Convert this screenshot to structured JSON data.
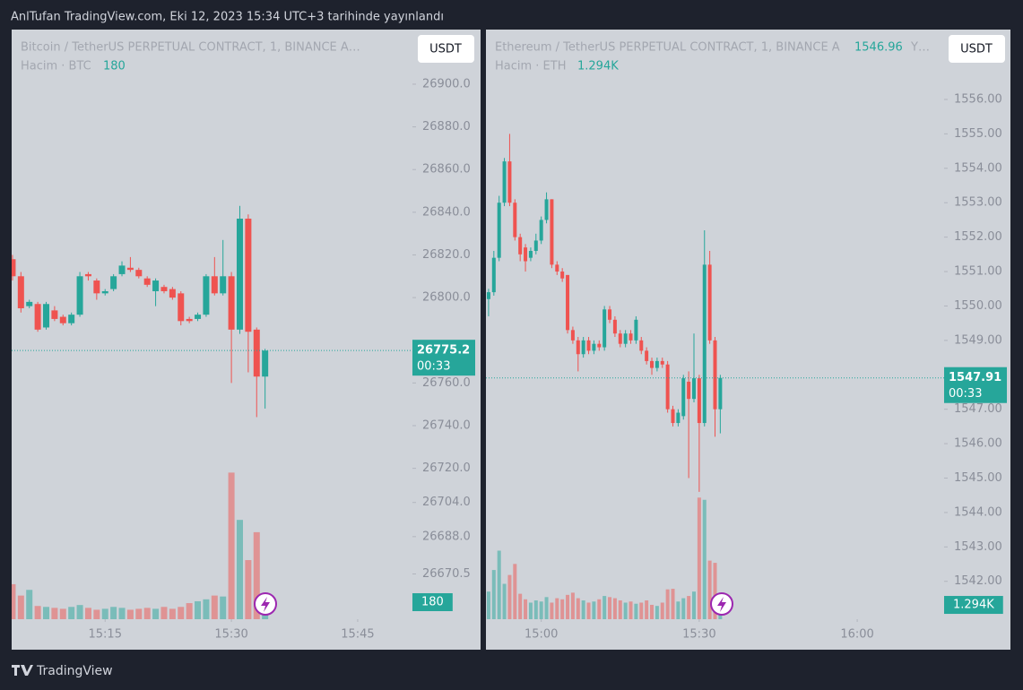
{
  "header": {
    "title": "AnlTufan TradingView.com, Eki 12, 2023 15:34 UTC+3 tarihinde yayınlandı"
  },
  "footer": {
    "brand": "TradingView"
  },
  "chart_data": [
    {
      "type": "candlestick",
      "symbol": "Bitcoin / TetherUS PERPETUAL CONTRACT, 1, BINANCE  A…",
      "volume_title": "Hacim · BTC",
      "currency": "USDT",
      "countdown": "00:33",
      "up_color": "#26a69a",
      "down_color": "#ef5350",
      "open": [
        26818,
        26810,
        26796,
        26797,
        26786,
        26794,
        26791,
        26788,
        26792,
        26811,
        26808,
        26802,
        26804,
        26811,
        26814,
        26813,
        26809,
        26803,
        26805,
        26804,
        26802,
        26790,
        26790,
        26792,
        26810,
        26802,
        26810,
        26785,
        26837,
        26785,
        26763
      ],
      "high": [
        26820,
        26812,
        26799,
        26798,
        26798,
        26796,
        26792,
        26793,
        26812,
        26812,
        26809,
        26804,
        26811,
        26817,
        26819,
        26814,
        26810,
        26809,
        26806,
        26805,
        26803,
        26791,
        26793,
        26811,
        26819,
        26827,
        26812,
        26843,
        26839,
        26786,
        26776
      ],
      "low": [
        26808,
        26793,
        26795,
        26784,
        26785,
        26789,
        26787,
        26787,
        26791,
        26808,
        26799,
        26801,
        26803,
        26810,
        26812,
        26809,
        26805,
        26796,
        26802,
        26799,
        26787,
        26788,
        26789,
        26791,
        26801,
        26801,
        26760,
        26783,
        26765,
        26744,
        26748
      ],
      "close": [
        26810,
        26795,
        26798,
        26785,
        26797,
        26790,
        26788,
        26792,
        26810,
        26810,
        26802,
        26803,
        26810,
        26815,
        26813,
        26810,
        26806,
        26808,
        26803,
        26800,
        26789,
        26789,
        26792,
        26810,
        26802,
        26810,
        26785,
        26837,
        26784,
        26763,
        26775.2
      ],
      "volumes": [
        370,
        250,
        310,
        140,
        130,
        120,
        110,
        130,
        150,
        120,
        100,
        110,
        130,
        120,
        100,
        110,
        120,
        110,
        130,
        110,
        130,
        170,
        190,
        210,
        250,
        240,
        1550,
        1050,
        625,
        920,
        180
      ],
      "vlim": [
        0,
        1800
      ],
      "ylim": [
        26649.3,
        26925.6
      ],
      "yticks": [
        {
          "value": 26900,
          "label": "26900.0"
        },
        {
          "value": 26880,
          "label": "26880.0"
        },
        {
          "value": 26860,
          "label": "26860.0"
        },
        {
          "value": 26840,
          "label": "26840.0"
        },
        {
          "value": 26820,
          "label": "26820.0"
        },
        {
          "value": 26800,
          "label": "26800.0"
        },
        {
          "value": 26760,
          "label": "26760.0"
        },
        {
          "value": 26740,
          "label": "26740.0"
        },
        {
          "value": 26720,
          "label": "26720.0"
        },
        {
          "value": 26704,
          "label": "26704.0"
        },
        {
          "value": 26688,
          "label": "26688.0"
        },
        26670.5
      ],
      "xlim": [
        -0.1,
        47.5
      ],
      "xticks": [
        {
          "value": 11,
          "label": "15:15"
        },
        {
          "value": 26,
          "label": "15:30"
        },
        {
          "value": 41,
          "label": "15:45"
        }
      ]
    },
    {
      "type": "candlestick",
      "symbol": "Ethereum / TetherUS PERPETUAL CONTRACT, 1, BINANCE  A",
      "legend_value": 1546.96,
      "legend_suffix": "Y…",
      "volume_title": "Hacim · ETH",
      "volume_label": "1.294K",
      "currency": "USDT",
      "countdown": "00:33",
      "up_color": "#26a69a",
      "down_color": "#ef5350",
      "open": [
        1550.2,
        1550.4,
        1551.4,
        1553.0,
        1554.2,
        1553.0,
        1552.0,
        1551.7,
        1551.4,
        1551.6,
        1551.9,
        1552.5,
        1553.1,
        1551.2,
        1551.0,
        1550.9,
        1549.3,
        1549.0,
        1548.6,
        1549.0,
        1548.7,
        1548.9,
        1548.8,
        1549.9,
        1549.6,
        1549.2,
        1548.9,
        1549.2,
        1549.0,
        1549.0,
        1548.7,
        1548.4,
        1548.2,
        1548.4,
        1548.3,
        1547.0,
        1546.6,
        1546.8,
        1547.8,
        1547.3,
        1547.9,
        1546.6,
        1551.2,
        1549.0,
        1547.0
      ],
      "high": [
        1550.5,
        1551.6,
        1553.2,
        1554.3,
        1555.0,
        1553.1,
        1552.1,
        1551.8,
        1551.7,
        1552.1,
        1552.6,
        1553.3,
        1553.1,
        1551.3,
        1551.1,
        1550.9,
        1549.4,
        1549.1,
        1549.1,
        1549.1,
        1549.0,
        1549.0,
        1550.0,
        1550.0,
        1549.7,
        1549.3,
        1549.3,
        1549.3,
        1549.7,
        1549.1,
        1548.8,
        1548.5,
        1548.5,
        1548.5,
        1548.4,
        1547.1,
        1547.0,
        1548.0,
        1548.1,
        1549.2,
        1548.0,
        1552.2,
        1551.6,
        1549.1,
        1548.0
      ],
      "low": [
        1549.7,
        1550.3,
        1551.3,
        1552.9,
        1552.9,
        1551.9,
        1551.3,
        1551.0,
        1551.3,
        1551.5,
        1551.8,
        1552.4,
        1551.1,
        1550.9,
        1550.7,
        1549.2,
        1548.9,
        1548.1,
        1548.5,
        1548.6,
        1548.6,
        1548.7,
        1548.7,
        1549.5,
        1549.1,
        1548.8,
        1548.8,
        1548.9,
        1548.9,
        1548.6,
        1548.3,
        1548.0,
        1548.1,
        1548.2,
        1546.9,
        1546.5,
        1546.5,
        1546.7,
        1545.0,
        1547.2,
        1544.6,
        1546.5,
        1548.9,
        1546.2,
        1546.3
      ],
      "close": [
        1550.4,
        1551.4,
        1553.0,
        1554.2,
        1553.0,
        1552.0,
        1551.5,
        1551.3,
        1551.6,
        1551.9,
        1552.5,
        1553.1,
        1551.2,
        1551.0,
        1550.8,
        1549.3,
        1549.0,
        1548.6,
        1549.0,
        1548.7,
        1548.9,
        1548.8,
        1549.9,
        1549.6,
        1549.2,
        1548.9,
        1549.2,
        1549.0,
        1549.6,
        1548.7,
        1548.4,
        1548.2,
        1548.4,
        1548.3,
        1547.0,
        1546.6,
        1546.9,
        1547.9,
        1547.3,
        1547.9,
        1546.6,
        1551.2,
        1549.0,
        1547.0,
        1547.91
      ],
      "volumes": [
        2500,
        4450,
        6200,
        3200,
        4000,
        5000,
        2300,
        1800,
        1500,
        1700,
        1600,
        2000,
        1500,
        1900,
        1800,
        2200,
        2400,
        1900,
        1700,
        1500,
        1600,
        1800,
        2100,
        2000,
        1900,
        1700,
        1500,
        1600,
        1400,
        1500,
        1700,
        1300,
        1200,
        1500,
        2700,
        2750,
        1600,
        1900,
        2100,
        2500,
        11000,
        10800,
        5300,
        5100,
        1294
      ],
      "vlim": [
        0,
        15400
      ],
      "ylim": [
        1540.9,
        1558.03
      ],
      "yticks": [
        {
          "value": 1556,
          "label": "1556.00"
        },
        {
          "value": 1555,
          "label": "1555.00"
        },
        {
          "value": 1554,
          "label": "1554.00"
        },
        {
          "value": 1553,
          "label": "1553.00"
        },
        {
          "value": 1552,
          "label": "1552.00"
        },
        {
          "value": 1551,
          "label": "1551.00"
        },
        {
          "value": 1550,
          "label": "1550.00"
        },
        {
          "value": 1549,
          "label": "1549.00"
        },
        {
          "value": 1547,
          "label": "1547.00"
        },
        {
          "value": 1546,
          "label": "1546.00"
        },
        {
          "value": 1545,
          "label": "1545.00"
        },
        {
          "value": 1544,
          "label": "1544.00"
        },
        {
          "value": 1543,
          "label": "1543.00"
        },
        {
          "value": 1542,
          "label": "1542.00"
        }
      ],
      "xlim": [
        -0.5,
        86.5
      ],
      "xticks": [
        {
          "value": 10,
          "label": "15:00"
        },
        {
          "value": 40,
          "label": "15:30"
        },
        {
          "value": 70,
          "label": "16:00"
        }
      ]
    }
  ]
}
